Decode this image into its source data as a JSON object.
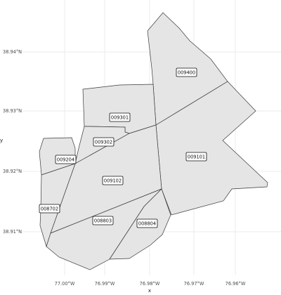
{
  "map": {
    "axis": {
      "x_title": "x",
      "y_title": "y",
      "x_ticks": [
        "77.00°W",
        "76.99°W",
        "76.98°W",
        "76.97°W",
        "76.96°W"
      ],
      "y_ticks": [
        "38.94°N",
        "38.93°N",
        "38.92°N",
        "38.91°N"
      ]
    },
    "tracts": [
      {
        "id": "009400",
        "label": "009400"
      },
      {
        "id": "009301",
        "label": "009301"
      },
      {
        "id": "009302",
        "label": "009302"
      },
      {
        "id": "009204",
        "label": "009204"
      },
      {
        "id": "009101",
        "label": "009101"
      },
      {
        "id": "009102",
        "label": "009102"
      },
      {
        "id": "008702",
        "label": "008702"
      },
      {
        "id": "008803",
        "label": "008803"
      },
      {
        "id": "008804",
        "label": "008804"
      }
    ]
  }
}
